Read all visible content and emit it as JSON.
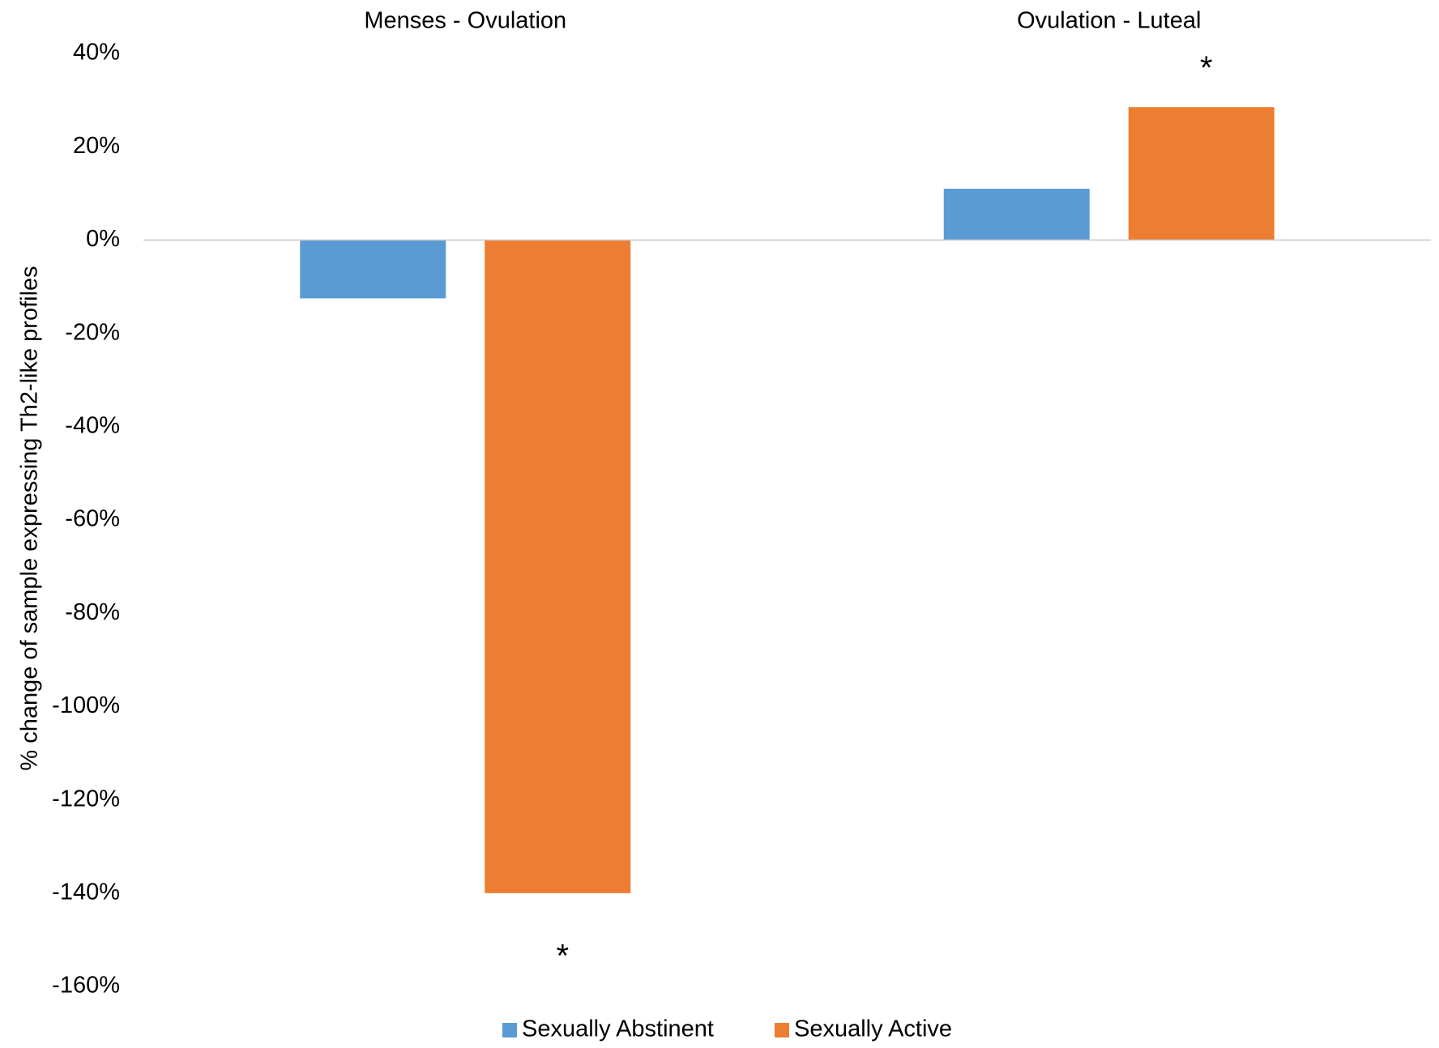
{
  "chart_data": {
    "type": "bar",
    "title": "",
    "xlabel": "",
    "ylabel": "% change of sample expressing Th2-like profiles",
    "categories": [
      "Menses - Ovulation",
      "Ovulation - Luteal"
    ],
    "series": [
      {
        "name": "Sexually Abstinent",
        "color": "#5B9BD5",
        "values": [
          -12.5,
          11
        ]
      },
      {
        "name": "Sexually Active",
        "color": "#ED7D31",
        "values": [
          -140,
          28.5
        ]
      }
    ],
    "ylim": [
      -160,
      40
    ],
    "yticks": [
      40,
      20,
      0,
      -20,
      -40,
      -60,
      -80,
      -100,
      -120,
      -140,
      -160
    ],
    "ytick_labels": [
      "40%",
      "20%",
      "0%",
      "-20%",
      "-40%",
      "-60%",
      "-80%",
      "-100%",
      "-120%",
      "-140%",
      "-160%"
    ],
    "category_labels_position": "top",
    "grid": false,
    "legend": "bottom",
    "annotations": [
      {
        "text": "*",
        "series": "Sexually Active",
        "category": "Menses - Ovulation"
      },
      {
        "text": "*",
        "series": "Sexually Active",
        "category": "Ovulation - Luteal"
      }
    ]
  }
}
